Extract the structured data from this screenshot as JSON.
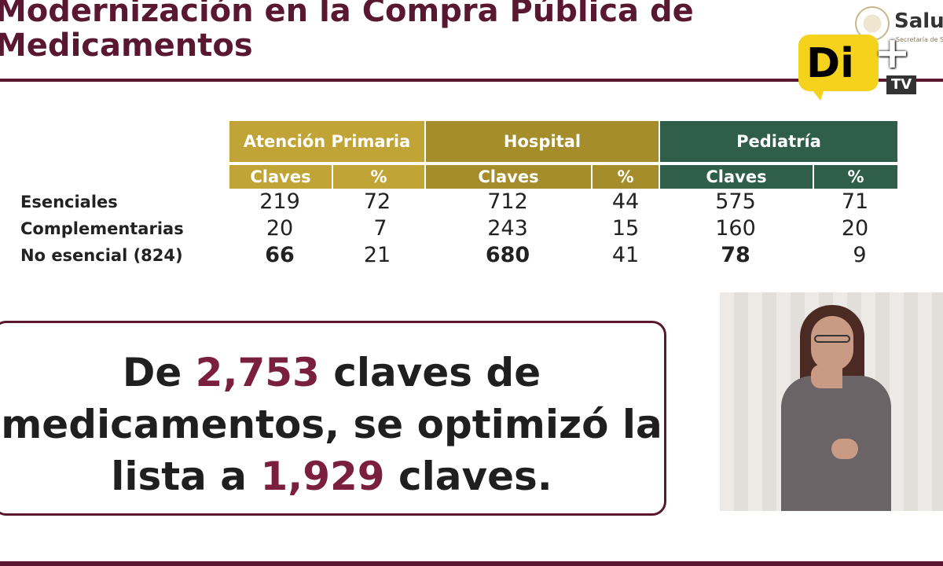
{
  "slide": {
    "title": "Modernización en la Compra Pública de\nMedicamentos"
  },
  "logos": {
    "salud": {
      "text": "Salu",
      "subtext": "Secretaría de Salud"
    },
    "channel": {
      "main": "Di",
      "plus": "+",
      "suffix": "TV"
    }
  },
  "table": {
    "groups": [
      {
        "name": "Atención Primaria",
        "color": "#c0a436"
      },
      {
        "name": "Hospital",
        "color": "#a58d2c"
      },
      {
        "name": "Pediatría",
        "color": "#2f5f4a"
      }
    ],
    "subheaders": [
      "Claves",
      "%",
      "Claves",
      "%",
      "Claves",
      "%"
    ],
    "rows": [
      {
        "label": "Esenciales",
        "values": [
          "219",
          "72",
          "712",
          "44",
          "575",
          "71"
        ]
      },
      {
        "label": "Complementarias",
        "values": [
          "20",
          "7",
          "243",
          "15",
          "160",
          "20"
        ]
      },
      {
        "label": "No esencial (824)",
        "values": [
          "66",
          "21",
          "680",
          "41",
          "78",
          "9"
        ]
      }
    ]
  },
  "callout": {
    "part1": "De ",
    "highlight1": "2,753",
    "part2": " claves de medicamentos, se optimizó la lista a ",
    "highlight2": "1,929",
    "part3": " claves.",
    "highlight_color": "#7a1f3d"
  }
}
